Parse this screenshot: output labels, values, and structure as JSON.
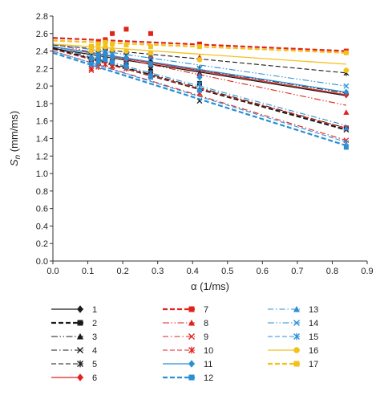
{
  "chart_data": {
    "type": "scatter",
    "xlabel": "α (1/ms)",
    "ylabel_base": "S",
    "ylabel_sub": "n",
    "ylabel_rest": " (mm/ms)",
    "xlim": [
      0,
      0.9
    ],
    "ylim": [
      0,
      2.8
    ],
    "xticks": [
      "0.0",
      "0.1",
      "0.2",
      "0.3",
      "0.4",
      "0.5",
      "0.6",
      "0.7",
      "0.8",
      "0.9"
    ],
    "yticks": [
      "0.0",
      "0.2",
      "0.4",
      "0.6",
      "0.8",
      "1.0",
      "1.2",
      "1.4",
      "1.6",
      "1.8",
      "2.0",
      "2.2",
      "2.4",
      "2.6",
      "2.8"
    ],
    "grid": false,
    "legend_position": "bottom",
    "series": [
      {
        "name": "1",
        "color": "#1a1a1a",
        "marker": "diamond",
        "dash": "solid",
        "width": 1.3,
        "points": [
          [
            0.11,
            2.3
          ],
          [
            0.13,
            2.31
          ],
          [
            0.15,
            2.33
          ],
          [
            0.17,
            2.3
          ],
          [
            0.21,
            2.28
          ],
          [
            0.28,
            2.22
          ],
          [
            0.42,
            2.12
          ],
          [
            0.84,
            1.9
          ]
        ],
        "fit": [
          [
            0,
            2.43
          ],
          [
            0.84,
            1.89
          ]
        ]
      },
      {
        "name": "2",
        "color": "#1a1a1a",
        "marker": "square",
        "dash": "dash",
        "width": 2.2,
        "points": [
          [
            0.11,
            2.28
          ],
          [
            0.13,
            2.3
          ],
          [
            0.15,
            2.32
          ],
          [
            0.17,
            2.26
          ],
          [
            0.21,
            2.27
          ],
          [
            0.28,
            2.17
          ],
          [
            0.42,
            2.03
          ],
          [
            0.84,
            1.52
          ]
        ],
        "fit": [
          [
            0,
            2.43
          ],
          [
            0.84,
            1.5
          ]
        ]
      },
      {
        "name": "3",
        "color": "#1a1a1a",
        "marker": "triangle",
        "dash": "dashdotdot",
        "width": 1.1,
        "points": [
          [
            0.11,
            2.32
          ],
          [
            0.13,
            2.35
          ],
          [
            0.15,
            2.38
          ],
          [
            0.17,
            2.35
          ],
          [
            0.21,
            2.33
          ],
          [
            0.28,
            2.27
          ],
          [
            0.42,
            2.15
          ],
          [
            0.84,
            1.93
          ]
        ],
        "fit": [
          [
            0,
            2.45
          ],
          [
            0.84,
            1.92
          ]
        ]
      },
      {
        "name": "4",
        "color": "#1a1a1a",
        "marker": "x",
        "dash": "dashdot",
        "width": 1.1,
        "points": [
          [
            0.11,
            2.25
          ],
          [
            0.13,
            2.27
          ],
          [
            0.15,
            2.3
          ],
          [
            0.17,
            2.27
          ],
          [
            0.21,
            2.22
          ],
          [
            0.28,
            2.12
          ],
          [
            0.42,
            1.83
          ],
          [
            0.84,
            1.5
          ]
        ],
        "fit": [
          [
            0,
            2.44
          ],
          [
            0.84,
            1.52
          ]
        ]
      },
      {
        "name": "5",
        "color": "#1a1a1a",
        "marker": "asterisk",
        "dash": "dash",
        "width": 1.1,
        "points": [
          [
            0.11,
            2.35
          ],
          [
            0.13,
            2.37
          ],
          [
            0.15,
            2.4
          ],
          [
            0.17,
            2.37
          ],
          [
            0.21,
            2.35
          ],
          [
            0.28,
            2.3
          ],
          [
            0.42,
            2.2
          ],
          [
            0.84,
            2.15
          ]
        ],
        "fit": [
          [
            0,
            2.47
          ],
          [
            0.84,
            2.15
          ]
        ]
      },
      {
        "name": "6",
        "color": "#e0221c",
        "marker": "diamond",
        "dash": "solid",
        "width": 1.3,
        "points": [
          [
            0.11,
            2.3
          ],
          [
            0.13,
            2.32
          ],
          [
            0.15,
            2.35
          ],
          [
            0.17,
            2.32
          ],
          [
            0.21,
            2.3
          ],
          [
            0.28,
            2.24
          ],
          [
            0.42,
            2.12
          ],
          [
            0.84,
            1.9
          ]
        ],
        "fit": [
          [
            0,
            2.45
          ],
          [
            0.84,
            1.9
          ]
        ]
      },
      {
        "name": "7",
        "color": "#e0221c",
        "marker": "square",
        "dash": "dash",
        "width": 2.2,
        "points": [
          [
            0.11,
            2.45
          ],
          [
            0.13,
            2.5
          ],
          [
            0.15,
            2.53
          ],
          [
            0.17,
            2.6
          ],
          [
            0.21,
            2.65
          ],
          [
            0.28,
            2.6
          ],
          [
            0.42,
            2.48
          ],
          [
            0.84,
            2.4
          ]
        ],
        "fit": [
          [
            0,
            2.55
          ],
          [
            0.84,
            2.4
          ]
        ]
      },
      {
        "name": "8",
        "color": "#e0221c",
        "marker": "triangle",
        "dash": "dashdotdot",
        "width": 1.1,
        "points": [
          [
            0.11,
            2.4
          ],
          [
            0.13,
            2.42
          ],
          [
            0.15,
            2.45
          ],
          [
            0.17,
            2.42
          ],
          [
            0.21,
            2.4
          ],
          [
            0.28,
            2.35
          ],
          [
            0.42,
            2.33
          ],
          [
            0.84,
            1.7
          ]
        ],
        "fit": [
          [
            0,
            2.48
          ],
          [
            0.84,
            1.78
          ]
        ]
      },
      {
        "name": "9",
        "color": "#e0221c",
        "marker": "x",
        "dash": "dashdot",
        "width": 1.1,
        "points": [
          [
            0.11,
            2.18
          ],
          [
            0.13,
            2.22
          ],
          [
            0.15,
            2.25
          ],
          [
            0.17,
            2.23
          ],
          [
            0.21,
            2.22
          ],
          [
            0.28,
            2.15
          ],
          [
            0.42,
            1.92
          ],
          [
            0.84,
            1.38
          ]
        ],
        "fit": [
          [
            0,
            2.4
          ],
          [
            0.84,
            1.38
          ]
        ]
      },
      {
        "name": "10",
        "color": "#e0221c",
        "marker": "asterisk",
        "dash": "dash",
        "width": 1.1,
        "points": [
          [
            0.11,
            2.2
          ],
          [
            0.13,
            2.22
          ],
          [
            0.15,
            2.25
          ],
          [
            0.17,
            2.22
          ],
          [
            0.21,
            2.2
          ],
          [
            0.28,
            2.12
          ],
          [
            0.42,
            1.92
          ],
          [
            0.84,
            1.52
          ]
        ],
        "fit": [
          [
            0,
            2.42
          ],
          [
            0.84,
            1.52
          ]
        ]
      },
      {
        "name": "11",
        "color": "#2a8fd6",
        "marker": "diamond",
        "dash": "solid",
        "width": 1.3,
        "points": [
          [
            0.11,
            2.32
          ],
          [
            0.13,
            2.35
          ],
          [
            0.15,
            2.37
          ],
          [
            0.17,
            2.35
          ],
          [
            0.21,
            2.32
          ],
          [
            0.28,
            2.25
          ],
          [
            0.42,
            2.1
          ],
          [
            0.84,
            1.93
          ]
        ],
        "fit": [
          [
            0,
            2.45
          ],
          [
            0.84,
            1.93
          ]
        ]
      },
      {
        "name": "12",
        "color": "#2a8fd6",
        "marker": "square",
        "dash": "dash",
        "width": 2.2,
        "points": [
          [
            0.11,
            2.25
          ],
          [
            0.13,
            2.28
          ],
          [
            0.15,
            2.3
          ],
          [
            0.17,
            2.27
          ],
          [
            0.21,
            2.22
          ],
          [
            0.28,
            2.1
          ],
          [
            0.42,
            1.95
          ],
          [
            0.84,
            1.3
          ]
        ],
        "fit": [
          [
            0,
            2.38
          ],
          [
            0.84,
            1.32
          ]
        ]
      },
      {
        "name": "13",
        "color": "#2a8fd6",
        "marker": "triangle",
        "dash": "dashdot",
        "width": 1.1,
        "points": [
          [
            0.11,
            2.33
          ],
          [
            0.13,
            2.35
          ],
          [
            0.15,
            2.38
          ],
          [
            0.17,
            2.35
          ],
          [
            0.21,
            2.32
          ],
          [
            0.28,
            2.25
          ],
          [
            0.42,
            2.12
          ],
          [
            0.84,
            1.52
          ]
        ],
        "fit": [
          [
            0,
            2.45
          ],
          [
            0.84,
            1.55
          ]
        ]
      },
      {
        "name": "14",
        "color": "#2a8fd6",
        "marker": "x",
        "dash": "dashdotdot",
        "width": 1.1,
        "points": [
          [
            0.11,
            2.38
          ],
          [
            0.13,
            2.4
          ],
          [
            0.15,
            2.42
          ],
          [
            0.17,
            2.4
          ],
          [
            0.21,
            2.38
          ],
          [
            0.28,
            2.32
          ],
          [
            0.42,
            2.2
          ],
          [
            0.84,
            2.0
          ]
        ],
        "fit": [
          [
            0,
            2.48
          ],
          [
            0.84,
            2.0
          ]
        ]
      },
      {
        "name": "15",
        "color": "#2a8fd6",
        "marker": "asterisk",
        "dash": "dash",
        "width": 1.1,
        "points": [
          [
            0.11,
            2.28
          ],
          [
            0.13,
            2.3
          ],
          [
            0.15,
            2.32
          ],
          [
            0.17,
            2.3
          ],
          [
            0.21,
            2.25
          ],
          [
            0.28,
            2.15
          ],
          [
            0.42,
            2.02
          ],
          [
            0.84,
            1.35
          ]
        ],
        "fit": [
          [
            0,
            2.4
          ],
          [
            0.84,
            1.36
          ]
        ]
      },
      {
        "name": "16",
        "color": "#f2c21b",
        "marker": "circle",
        "dash": "solid",
        "width": 1.3,
        "points": [
          [
            0.11,
            2.4
          ],
          [
            0.13,
            2.42
          ],
          [
            0.15,
            2.45
          ],
          [
            0.17,
            2.42
          ],
          [
            0.21,
            2.4
          ],
          [
            0.28,
            2.38
          ],
          [
            0.42,
            2.3
          ],
          [
            0.84,
            2.18
          ]
        ],
        "fit": [
          [
            0,
            2.48
          ],
          [
            0.84,
            2.25
          ]
        ]
      },
      {
        "name": "17",
        "color": "#f2c21b",
        "marker": "square",
        "dash": "dash",
        "width": 2.2,
        "points": [
          [
            0.11,
            2.45
          ],
          [
            0.13,
            2.48
          ],
          [
            0.15,
            2.5
          ],
          [
            0.17,
            2.48
          ],
          [
            0.21,
            2.47
          ],
          [
            0.28,
            2.45
          ],
          [
            0.42,
            2.45
          ],
          [
            0.84,
            2.38
          ]
        ],
        "fit": [
          [
            0,
            2.52
          ],
          [
            0.84,
            2.38
          ]
        ]
      }
    ]
  }
}
